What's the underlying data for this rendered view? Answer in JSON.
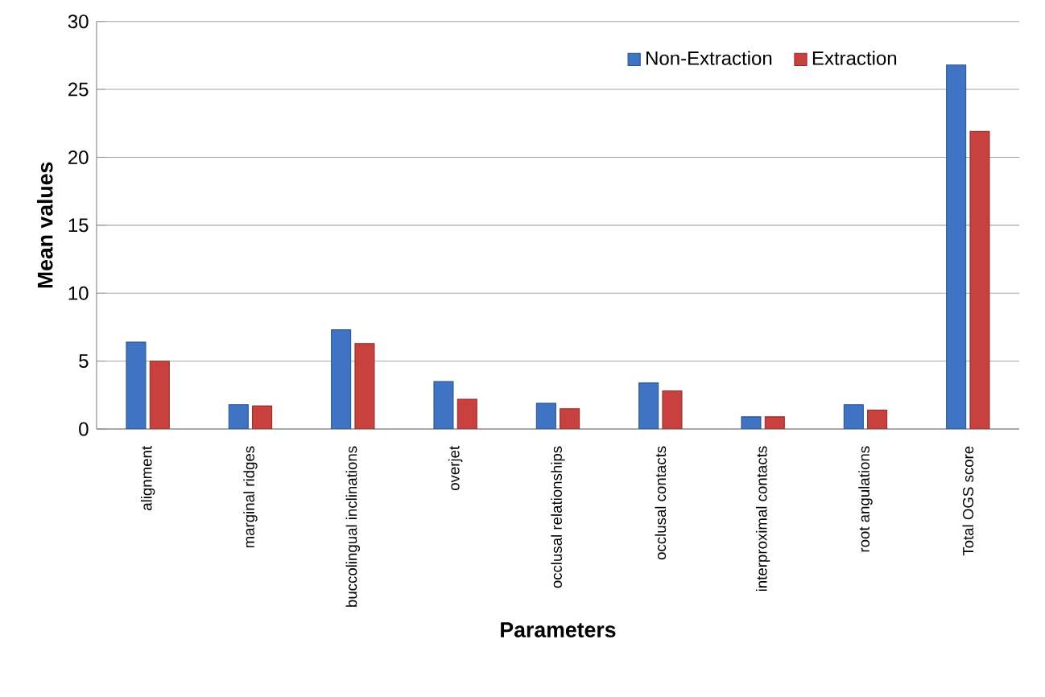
{
  "chart_data": {
    "type": "bar",
    "xlabel": "Parameters",
    "ylabel": "Mean values",
    "categories": [
      "alignment",
      "marginal ridges",
      "buccolingual inclinations",
      "overjet",
      "occlusal relationships",
      "occlusal contacts",
      "interproximal contacts",
      "root angulations",
      "Total OGS score"
    ],
    "series": [
      {
        "name": "Non-Extraction",
        "color": "#3f74c4",
        "values": [
          6.4,
          1.8,
          7.3,
          3.5,
          1.9,
          3.4,
          0.9,
          1.8,
          26.8
        ]
      },
      {
        "name": "Extraction",
        "color": "#c9413e",
        "values": [
          5.0,
          1.7,
          6.3,
          2.2,
          1.5,
          2.8,
          0.9,
          1.4,
          21.9
        ]
      }
    ],
    "ylim": [
      0,
      30
    ],
    "yticks": [
      0,
      5,
      10,
      15,
      20,
      25,
      30
    ],
    "grid": "y",
    "legend": "top right"
  }
}
